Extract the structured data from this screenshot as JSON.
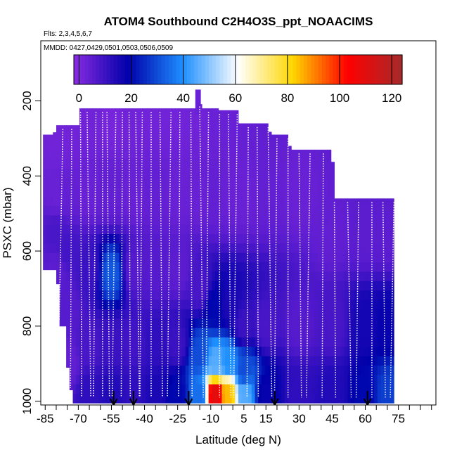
{
  "chart_data": {
    "type": "heatmap",
    "title": "ATOM4 Southbound C2H4O3S_ppt_NOAACIMS",
    "subtitle_flights": "Flts: 2,3,4,5,6,7",
    "subtitle_dates": "MMDD: 0427,0429,0501,0503,0506,0509",
    "xlabel": "Latitude (deg N)",
    "ylabel": "PSXC (mbar)",
    "xlim": [
      -87,
      92
    ],
    "ylim": [
      1010,
      40
    ],
    "x_ticks": [
      -85,
      -70,
      -55,
      -40,
      -25,
      -10,
      5,
      15,
      30,
      45,
      60,
      75
    ],
    "x_tick_labels": [
      "-85",
      "-70",
      "-55",
      "-40",
      "-25",
      "-10",
      "5",
      "15",
      "30",
      "45",
      "60",
      "75"
    ],
    "y_ticks": [
      200,
      400,
      600,
      800,
      1000
    ],
    "y_tick_labels": [
      "200",
      "400",
      "600",
      "800",
      "1000"
    ],
    "colorbar": {
      "range": [
        -2,
        124
      ],
      "ticks": [
        0,
        20,
        40,
        60,
        80,
        100,
        120
      ],
      "tick_labels": [
        "0",
        "20",
        "40",
        "60",
        "80",
        "100",
        "120"
      ],
      "colors": [
        "#8a2be2",
        "#0000aa",
        "#1e90ff",
        "#ffffff",
        "#ffd700",
        "#ff0000",
        "#a52a2a"
      ]
    },
    "arrows_latitude": [
      -54,
      -45,
      -20,
      19,
      61
    ],
    "profile_latitudes": [
      -77,
      -73,
      -69,
      -66,
      -62,
      -59,
      -57,
      -53,
      -50,
      -47,
      -44,
      -41,
      -37,
      -33,
      -28,
      -24,
      -19,
      -15,
      -11,
      -6,
      -2,
      2,
      7,
      11,
      16,
      20,
      25,
      30,
      35,
      41,
      46,
      52,
      57,
      63,
      68,
      73
    ],
    "values": [
      {
        "lat": -80,
        "p": 300,
        "v": 2
      },
      {
        "lat": -80,
        "p": 450,
        "v": 3
      },
      {
        "lat": -80,
        "p": 550,
        "v": 8
      },
      {
        "lat": -80,
        "p": 650,
        "v": 5
      },
      {
        "lat": -75,
        "p": 300,
        "v": 2
      },
      {
        "lat": -75,
        "p": 450,
        "v": 4
      },
      {
        "lat": -75,
        "p": 600,
        "v": 9
      },
      {
        "lat": -75,
        "p": 750,
        "v": 6
      },
      {
        "lat": -75,
        "p": 900,
        "v": 4
      },
      {
        "lat": -65,
        "p": 250,
        "v": 2
      },
      {
        "lat": -65,
        "p": 450,
        "v": 3
      },
      {
        "lat": -65,
        "p": 650,
        "v": 10
      },
      {
        "lat": -65,
        "p": 850,
        "v": 8
      },
      {
        "lat": -65,
        "p": 980,
        "v": 12
      },
      {
        "lat": -55,
        "p": 250,
        "v": 1
      },
      {
        "lat": -55,
        "p": 450,
        "v": 4
      },
      {
        "lat": -55,
        "p": 660,
        "v": 32
      },
      {
        "lat": -55,
        "p": 850,
        "v": 10
      },
      {
        "lat": -55,
        "p": 980,
        "v": 14
      },
      {
        "lat": -45,
        "p": 250,
        "v": 2
      },
      {
        "lat": -45,
        "p": 450,
        "v": 3
      },
      {
        "lat": -45,
        "p": 650,
        "v": 6
      },
      {
        "lat": -45,
        "p": 850,
        "v": 9
      },
      {
        "lat": -45,
        "p": 980,
        "v": 12
      },
      {
        "lat": -35,
        "p": 250,
        "v": 2
      },
      {
        "lat": -35,
        "p": 450,
        "v": 4
      },
      {
        "lat": -35,
        "p": 650,
        "v": 6
      },
      {
        "lat": -35,
        "p": 850,
        "v": 12
      },
      {
        "lat": -35,
        "p": 980,
        "v": 15
      },
      {
        "lat": -25,
        "p": 250,
        "v": 2
      },
      {
        "lat": -25,
        "p": 450,
        "v": 3
      },
      {
        "lat": -25,
        "p": 650,
        "v": 5
      },
      {
        "lat": -25,
        "p": 850,
        "v": 10
      },
      {
        "lat": -25,
        "p": 980,
        "v": 20
      },
      {
        "lat": -15,
        "p": 250,
        "v": 2
      },
      {
        "lat": -15,
        "p": 450,
        "v": 3
      },
      {
        "lat": -15,
        "p": 700,
        "v": 8
      },
      {
        "lat": -15,
        "p": 880,
        "v": 30
      },
      {
        "lat": -15,
        "p": 980,
        "v": 35
      },
      {
        "lat": -8,
        "p": 250,
        "v": 3
      },
      {
        "lat": -8,
        "p": 450,
        "v": 4
      },
      {
        "lat": -8,
        "p": 750,
        "v": 20
      },
      {
        "lat": -8,
        "p": 900,
        "v": 45
      },
      {
        "lat": -8,
        "p": 980,
        "v": 110
      },
      {
        "lat": -2,
        "p": 450,
        "v": 3
      },
      {
        "lat": -2,
        "p": 750,
        "v": 15
      },
      {
        "lat": -2,
        "p": 900,
        "v": 40
      },
      {
        "lat": -2,
        "p": 980,
        "v": 85
      },
      {
        "lat": 5,
        "p": 450,
        "v": 3
      },
      {
        "lat": 5,
        "p": 800,
        "v": 10
      },
      {
        "lat": 5,
        "p": 920,
        "v": 30
      },
      {
        "lat": 5,
        "p": 980,
        "v": 45
      },
      {
        "lat": 15,
        "p": 450,
        "v": 4
      },
      {
        "lat": 15,
        "p": 800,
        "v": 8
      },
      {
        "lat": 15,
        "p": 980,
        "v": 18
      },
      {
        "lat": 30,
        "p": 450,
        "v": 3
      },
      {
        "lat": 30,
        "p": 800,
        "v": 6
      },
      {
        "lat": 30,
        "p": 980,
        "v": 12
      },
      {
        "lat": 45,
        "p": 550,
        "v": 4
      },
      {
        "lat": 45,
        "p": 800,
        "v": 8
      },
      {
        "lat": 45,
        "p": 980,
        "v": 14
      },
      {
        "lat": 60,
        "p": 550,
        "v": 5
      },
      {
        "lat": 60,
        "p": 800,
        "v": 16
      },
      {
        "lat": 60,
        "p": 980,
        "v": 20
      },
      {
        "lat": 70,
        "p": 550,
        "v": 5
      },
      {
        "lat": 70,
        "p": 800,
        "v": 18
      },
      {
        "lat": 70,
        "p": 980,
        "v": 28
      }
    ]
  }
}
